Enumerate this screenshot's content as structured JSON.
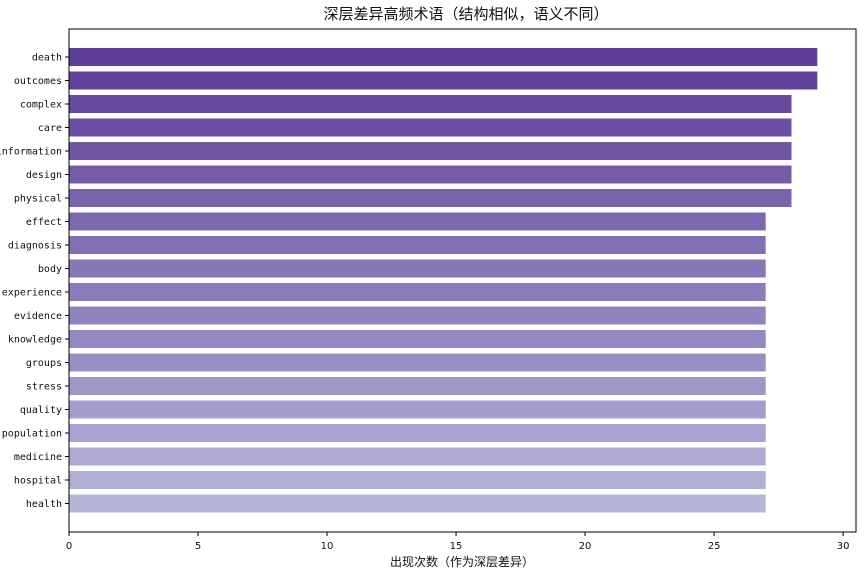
{
  "chart_data": {
    "type": "bar",
    "orientation": "horizontal",
    "title": "深层差异高频术语（结构相似，语义不同）",
    "xlabel": "出现次数（作为深层差异）",
    "ylabel": "",
    "xlim": [
      0,
      30.5
    ],
    "xticks": [
      0,
      5,
      10,
      15,
      20,
      25,
      30
    ],
    "grid": false,
    "categories": [
      "death",
      "outcomes",
      "complex",
      "care",
      "information",
      "design",
      "physical",
      "effect",
      "diagnosis",
      "body",
      "experience",
      "evidence",
      "knowledge",
      "groups",
      "stress",
      "quality",
      "population",
      "medicine",
      "hospital",
      "health"
    ],
    "values": [
      29,
      29,
      28,
      28,
      28,
      28,
      28,
      27,
      27,
      27,
      27,
      27,
      27,
      27,
      27,
      27,
      27,
      27,
      27,
      27
    ],
    "color_range": [
      "#5e3c99",
      "#b6b6d9"
    ]
  }
}
